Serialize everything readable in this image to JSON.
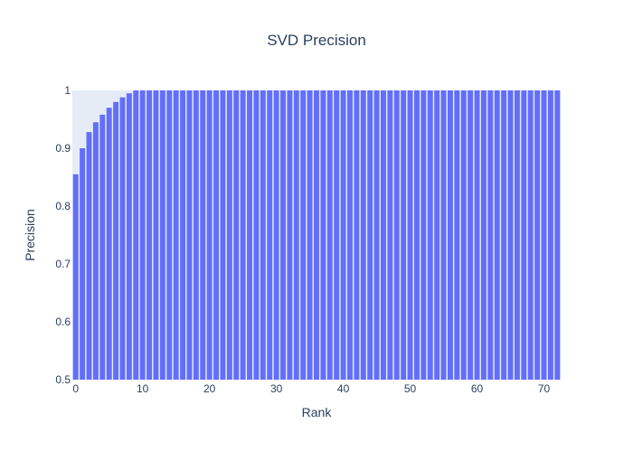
{
  "chart_data": {
    "type": "bar",
    "title": "SVD Precision",
    "xlabel": "Rank",
    "ylabel": "Precision",
    "x": [
      0,
      1,
      2,
      3,
      4,
      5,
      6,
      7,
      8,
      9,
      10,
      11,
      12,
      13,
      14,
      15,
      16,
      17,
      18,
      19,
      20,
      21,
      22,
      23,
      24,
      25,
      26,
      27,
      28,
      29,
      30,
      31,
      32,
      33,
      34,
      35,
      36,
      37,
      38,
      39,
      40,
      41,
      42,
      43,
      44,
      45,
      46,
      47,
      48,
      49,
      50,
      51,
      52,
      53,
      54,
      55,
      56,
      57,
      58,
      59,
      60,
      61,
      62,
      63,
      64,
      65,
      66,
      67,
      68,
      69,
      70,
      71,
      72
    ],
    "values": [
      0.855,
      0.9,
      0.928,
      0.945,
      0.958,
      0.97,
      0.98,
      0.988,
      0.995,
      1,
      1,
      1,
      1,
      1,
      1,
      1,
      1,
      1,
      1,
      1,
      1,
      1,
      1,
      1,
      1,
      1,
      1,
      1,
      1,
      1,
      1,
      1,
      1,
      1,
      1,
      1,
      1,
      1,
      1,
      1,
      1,
      1,
      1,
      1,
      1,
      1,
      1,
      1,
      1,
      1,
      1,
      1,
      1,
      1,
      1,
      1,
      1,
      1,
      1,
      1,
      1,
      1,
      1,
      1,
      1,
      1,
      1,
      1,
      1,
      1,
      1,
      1,
      1
    ],
    "xlim": [
      -0.5,
      72.5
    ],
    "ylim": [
      0.5,
      1
    ],
    "xticks": [
      0,
      10,
      20,
      30,
      40,
      50,
      60,
      70
    ],
    "yticks": [
      0.5,
      0.6,
      0.7,
      0.8,
      0.9,
      1
    ],
    "ytick_labels": [
      "0.5",
      "0.6",
      "0.7",
      "0.8",
      "0.9",
      "1"
    ],
    "bar_color": "#636efa",
    "plot_bg": "#e5ecf6",
    "grid": false,
    "legend": "none"
  }
}
